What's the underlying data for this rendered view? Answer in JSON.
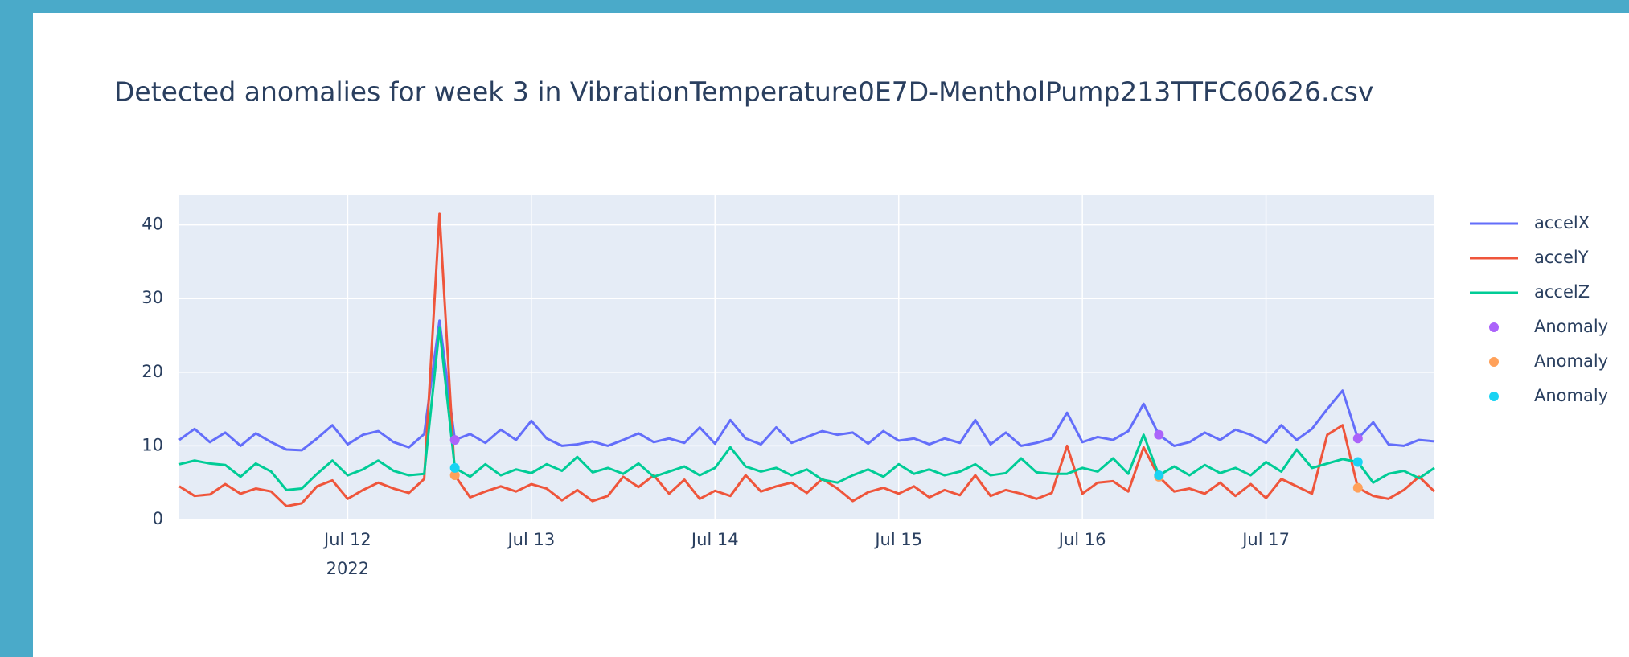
{
  "chart_data": {
    "type": "line",
    "title": "Detected anomalies for week 3 in VibrationTemperature0E7D-MentholPump213TTFC60626.csv",
    "x": [
      "2022-07-11 02:00",
      "2022-07-11 04:00",
      "2022-07-11 06:00",
      "2022-07-11 08:00",
      "2022-07-11 10:00",
      "2022-07-11 12:00",
      "2022-07-11 14:00",
      "2022-07-11 16:00",
      "2022-07-11 18:00",
      "2022-07-11 20:00",
      "2022-07-11 22:00",
      "2022-07-12 00:00",
      "2022-07-12 02:00",
      "2022-07-12 04:00",
      "2022-07-12 06:00",
      "2022-07-12 08:00",
      "2022-07-12 10:00",
      "2022-07-12 12:00",
      "2022-07-12 14:00",
      "2022-07-12 16:00",
      "2022-07-12 18:00",
      "2022-07-12 20:00",
      "2022-07-12 22:00",
      "2022-07-13 00:00",
      "2022-07-13 02:00",
      "2022-07-13 04:00",
      "2022-07-13 06:00",
      "2022-07-13 08:00",
      "2022-07-13 10:00",
      "2022-07-13 12:00",
      "2022-07-13 14:00",
      "2022-07-13 16:00",
      "2022-07-13 18:00",
      "2022-07-13 20:00",
      "2022-07-13 22:00",
      "2022-07-14 00:00",
      "2022-07-14 02:00",
      "2022-07-14 04:00",
      "2022-07-14 06:00",
      "2022-07-14 08:00",
      "2022-07-14 10:00",
      "2022-07-14 12:00",
      "2022-07-14 14:00",
      "2022-07-14 16:00",
      "2022-07-14 18:00",
      "2022-07-14 20:00",
      "2022-07-14 22:00",
      "2022-07-15 00:00",
      "2022-07-15 02:00",
      "2022-07-15 04:00",
      "2022-07-15 06:00",
      "2022-07-15 08:00",
      "2022-07-15 10:00",
      "2022-07-15 12:00",
      "2022-07-15 14:00",
      "2022-07-15 16:00",
      "2022-07-15 18:00",
      "2022-07-15 20:00",
      "2022-07-15 22:00",
      "2022-07-16 00:00",
      "2022-07-16 02:00",
      "2022-07-16 04:00",
      "2022-07-16 06:00",
      "2022-07-16 08:00",
      "2022-07-16 10:00",
      "2022-07-16 12:00",
      "2022-07-16 14:00",
      "2022-07-16 16:00",
      "2022-07-16 18:00",
      "2022-07-16 20:00",
      "2022-07-16 22:00",
      "2022-07-17 00:00",
      "2022-07-17 02:00",
      "2022-07-17 04:00",
      "2022-07-17 06:00",
      "2022-07-17 08:00",
      "2022-07-17 10:00",
      "2022-07-17 12:00",
      "2022-07-17 14:00",
      "2022-07-17 16:00",
      "2022-07-17 18:00",
      "2022-07-17 20:00",
      "2022-07-17 22:00"
    ],
    "series": [
      {
        "name": "accelX",
        "color": "#636efa",
        "mode": "line",
        "values": [
          10.8,
          12.3,
          10.5,
          11.8,
          10,
          11.7,
          10.5,
          9.5,
          9.4,
          11,
          12.8,
          10.2,
          11.5,
          12,
          10.5,
          9.8,
          11.6,
          27,
          10.8,
          11.6,
          10.4,
          12.2,
          10.8,
          13.4,
          11,
          10,
          10.2,
          10.6,
          10,
          10.8,
          11.7,
          10.5,
          11,
          10.4,
          12.5,
          10.3,
          13.5,
          11,
          10.2,
          12.5,
          10.4,
          11.2,
          12,
          11.5,
          11.8,
          10.3,
          12,
          10.7,
          11,
          10.2,
          11,
          10.4,
          13.5,
          10.2,
          11.8,
          10,
          10.4,
          11,
          14.5,
          10.5,
          11.2,
          10.8,
          12,
          15.7,
          11.5,
          10,
          10.5,
          11.8,
          10.8,
          12.2,
          11.5,
          10.4,
          12.8,
          10.8,
          12.3,
          15,
          17.5,
          11,
          13.2,
          10.2,
          10,
          10.8,
          10.6
        ]
      },
      {
        "name": "accelY",
        "color": "#EF553B",
        "mode": "line",
        "values": [
          4.5,
          3.2,
          3.4,
          4.8,
          3.5,
          4.2,
          3.8,
          1.8,
          2.2,
          4.5,
          5.3,
          2.8,
          4,
          5,
          4.2,
          3.6,
          5.5,
          41.5,
          6,
          3,
          3.8,
          4.5,
          3.8,
          4.8,
          4.2,
          2.6,
          4,
          2.5,
          3.2,
          5.8,
          4.4,
          6,
          3.5,
          5.4,
          2.8,
          3.9,
          3.2,
          6,
          3.8,
          4.5,
          5,
          3.6,
          5.5,
          4.2,
          2.5,
          3.7,
          4.3,
          3.5,
          4.5,
          3,
          4,
          3.3,
          6,
          3.2,
          4,
          3.5,
          2.8,
          3.6,
          10,
          3.5,
          5,
          5.2,
          3.8,
          9.8,
          5.8,
          3.8,
          4.2,
          3.5,
          5,
          3.2,
          4.8,
          2.9,
          5.5,
          4.5,
          3.5,
          11.5,
          12.8,
          4.3,
          3.2,
          2.8,
          4,
          5.8,
          3.8
        ]
      },
      {
        "name": "accelZ",
        "color": "#00cc96",
        "mode": "line",
        "values": [
          7.5,
          8,
          7.6,
          7.4,
          5.8,
          7.6,
          6.5,
          4,
          4.2,
          6.2,
          8,
          6,
          6.8,
          8,
          6.6,
          6,
          6.2,
          26,
          7,
          5.8,
          7.5,
          6,
          6.8,
          6.3,
          7.5,
          6.6,
          8.5,
          6.4,
          7,
          6.2,
          7.6,
          5.8,
          6.5,
          7.2,
          6,
          7,
          9.8,
          7.2,
          6.5,
          7,
          6,
          6.8,
          5.4,
          5,
          6,
          6.8,
          5.8,
          7.5,
          6.2,
          6.8,
          6,
          6.5,
          7.5,
          6,
          6.3,
          8.3,
          6.4,
          6.2,
          6.2,
          7,
          6.5,
          8.3,
          6.2,
          11.5,
          6,
          7.2,
          6,
          7.4,
          6.3,
          7,
          6,
          7.8,
          6.5,
          9.5,
          7,
          7.6,
          8.2,
          7.8,
          5,
          6.2,
          6.6,
          5.6,
          7
        ]
      },
      {
        "name": "Anomaly",
        "color": "#ab63fa",
        "mode": "markers",
        "x": [
          "2022-07-12 14:00",
          "2022-07-16 10:00",
          "2022-07-17 12:00"
        ],
        "values": [
          10.8,
          11.5,
          11
        ]
      },
      {
        "name": "Anomaly",
        "color": "#FFA15A",
        "mode": "markers",
        "x": [
          "2022-07-12 14:00",
          "2022-07-16 10:00",
          "2022-07-17 12:00"
        ],
        "values": [
          6,
          5.8,
          4.3
        ]
      },
      {
        "name": "Anomaly",
        "color": "#19d3f3",
        "mode": "markers",
        "x": [
          "2022-07-12 14:00",
          "2022-07-16 10:00",
          "2022-07-17 12:00"
        ],
        "values": [
          7,
          6,
          7.8
        ]
      }
    ],
    "xlim": [
      "2022-07-11 02:00",
      "2022-07-17 22:00"
    ],
    "xticks": [
      {
        "value": "2022-07-12 00:00",
        "label": "Jul 12"
      },
      {
        "value": "2022-07-13 00:00",
        "label": "Jul 13"
      },
      {
        "value": "2022-07-14 00:00",
        "label": "Jul 14"
      },
      {
        "value": "2022-07-15 00:00",
        "label": "Jul 15"
      },
      {
        "value": "2022-07-16 00:00",
        "label": "Jul 16"
      },
      {
        "value": "2022-07-17 00:00",
        "label": "Jul 17"
      }
    ],
    "x_year_label": "2022",
    "ylim": [
      0,
      44
    ],
    "yticks": [
      0,
      10,
      20,
      30,
      40
    ],
    "grid": true,
    "legend": "right"
  }
}
